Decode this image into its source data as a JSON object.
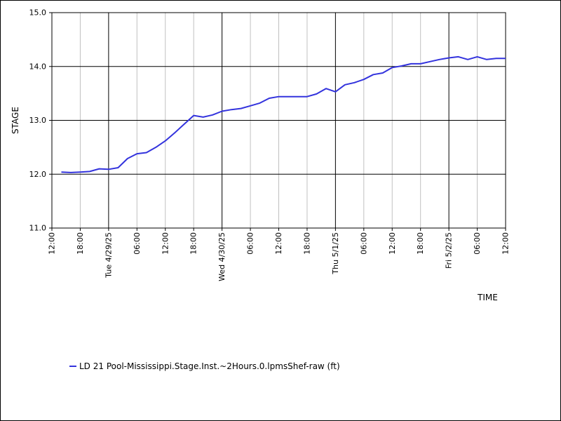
{
  "chart_data": {
    "type": "line",
    "xlabel": "TIME",
    "ylabel": "STAGE",
    "ylim": [
      11.0,
      15.0
    ],
    "y_ticks": [
      "11.0",
      "12.0",
      "13.0",
      "14.0",
      "15.0"
    ],
    "xlim": [
      "2025-04-28T12:00",
      "2025-05-02T12:00"
    ],
    "x_ticks": [
      {
        "t": "2025-04-28T12:00",
        "label": "12:00",
        "major": false
      },
      {
        "t": "2025-04-28T18:00",
        "label": "18:00",
        "major": false
      },
      {
        "t": "2025-04-29T00:00",
        "label": "Tue 4/29/25",
        "major": true
      },
      {
        "t": "2025-04-29T06:00",
        "label": "06:00",
        "major": false
      },
      {
        "t": "2025-04-29T12:00",
        "label": "12:00",
        "major": false
      },
      {
        "t": "2025-04-29T18:00",
        "label": "18:00",
        "major": false
      },
      {
        "t": "2025-04-30T00:00",
        "label": "Wed 4/30/25",
        "major": true
      },
      {
        "t": "2025-04-30T06:00",
        "label": "06:00",
        "major": false
      },
      {
        "t": "2025-04-30T12:00",
        "label": "12:00",
        "major": false
      },
      {
        "t": "2025-04-30T18:00",
        "label": "18:00",
        "major": false
      },
      {
        "t": "2025-05-01T00:00",
        "label": "Thu 5/1/25",
        "major": true
      },
      {
        "t": "2025-05-01T06:00",
        "label": "06:00",
        "major": false
      },
      {
        "t": "2025-05-01T12:00",
        "label": "12:00",
        "major": false
      },
      {
        "t": "2025-05-01T18:00",
        "label": "18:00",
        "major": false
      },
      {
        "t": "2025-05-02T00:00",
        "label": "Fri 5/2/25",
        "major": true
      },
      {
        "t": "2025-05-02T06:00",
        "label": "06:00",
        "major": false
      },
      {
        "t": "2025-05-02T12:00",
        "label": "12:00",
        "major": false
      }
    ],
    "grid": true,
    "legend_position": "bottom-left",
    "series": [
      {
        "name": "LD 21 Pool-Mississippi.Stage.Inst.~2Hours.0.lpmsShef-raw (ft)",
        "color": "#3333dd",
        "points": [
          [
            "2025-04-28T14:00",
            12.04
          ],
          [
            "2025-04-28T16:00",
            12.03
          ],
          [
            "2025-04-28T18:00",
            12.04
          ],
          [
            "2025-04-28T20:00",
            12.05
          ],
          [
            "2025-04-28T22:00",
            12.1
          ],
          [
            "2025-04-29T00:00",
            12.09
          ],
          [
            "2025-04-29T02:00",
            12.12
          ],
          [
            "2025-04-29T04:00",
            12.29
          ],
          [
            "2025-04-29T06:00",
            12.38
          ],
          [
            "2025-04-29T08:00",
            12.4
          ],
          [
            "2025-04-29T10:00",
            12.5
          ],
          [
            "2025-04-29T12:00",
            12.62
          ],
          [
            "2025-04-29T14:00",
            12.77
          ],
          [
            "2025-04-29T16:00",
            12.93
          ],
          [
            "2025-04-29T18:00",
            13.09
          ],
          [
            "2025-04-29T20:00",
            13.06
          ],
          [
            "2025-04-29T22:00",
            13.1
          ],
          [
            "2025-04-30T00:00",
            13.17
          ],
          [
            "2025-04-30T02:00",
            13.2
          ],
          [
            "2025-04-30T04:00",
            13.22
          ],
          [
            "2025-04-30T06:00",
            13.27
          ],
          [
            "2025-04-30T08:00",
            13.32
          ],
          [
            "2025-04-30T10:00",
            13.41
          ],
          [
            "2025-04-30T12:00",
            13.44
          ],
          [
            "2025-04-30T14:00",
            13.44
          ],
          [
            "2025-04-30T16:00",
            13.44
          ],
          [
            "2025-04-30T18:00",
            13.44
          ],
          [
            "2025-04-30T20:00",
            13.49
          ],
          [
            "2025-04-30T22:00",
            13.59
          ],
          [
            "2025-05-01T00:00",
            13.53
          ],
          [
            "2025-05-01T02:00",
            13.66
          ],
          [
            "2025-05-01T04:00",
            13.7
          ],
          [
            "2025-05-01T06:00",
            13.76
          ],
          [
            "2025-05-01T08:00",
            13.85
          ],
          [
            "2025-05-01T10:00",
            13.88
          ],
          [
            "2025-05-01T12:00",
            13.98
          ],
          [
            "2025-05-01T14:00",
            14.01
          ],
          [
            "2025-05-01T16:00",
            14.05
          ],
          [
            "2025-05-01T18:00",
            14.05
          ],
          [
            "2025-05-01T20:00",
            14.09
          ],
          [
            "2025-05-01T22:00",
            14.13
          ],
          [
            "2025-05-02T00:00",
            14.16
          ],
          [
            "2025-05-02T02:00",
            14.18
          ],
          [
            "2025-05-02T04:00",
            14.13
          ],
          [
            "2025-05-02T06:00",
            14.18
          ],
          [
            "2025-05-02T08:00",
            14.13
          ],
          [
            "2025-05-02T10:00",
            14.15
          ],
          [
            "2025-05-02T12:00",
            14.15
          ]
        ]
      }
    ]
  }
}
